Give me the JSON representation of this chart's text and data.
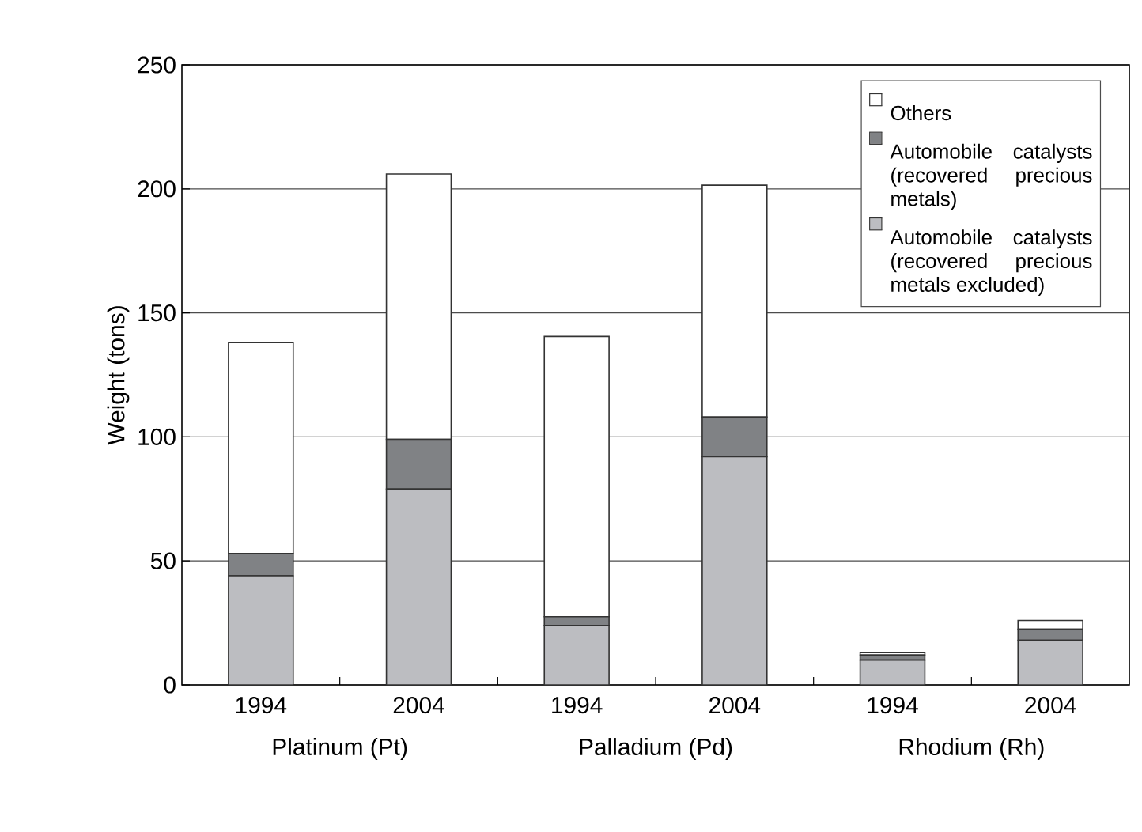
{
  "chart_data": {
    "type": "bar",
    "stacked": true,
    "ylabel": "Weight (tons)",
    "categories": [
      "1994",
      "2004",
      "1994",
      "2004",
      "1994",
      "2004"
    ],
    "annotations": [
      "Platinum (Pt)",
      "Palladium (Pd)",
      "Rhodium (Rh)"
    ],
    "series": [
      {
        "name": "Automobile catalysts (recovered precious metals excluded)",
        "color": "#bcbdc1",
        "values": [
          44,
          79,
          24,
          92,
          10,
          18
        ]
      },
      {
        "name": "Automobile catalysts (recovered precious metals)",
        "color": "#808285",
        "values": [
          9,
          20,
          3.5,
          16,
          2,
          4.5
        ]
      },
      {
        "name": "Others",
        "color": "#ffffff",
        "values": [
          85,
          107,
          113,
          93.5,
          1,
          3.5
        ]
      }
    ],
    "ylim": [
      0,
      250
    ],
    "yticks": [
      0,
      50,
      100,
      150,
      200,
      250
    ],
    "grid": "y",
    "legend": "top right"
  }
}
